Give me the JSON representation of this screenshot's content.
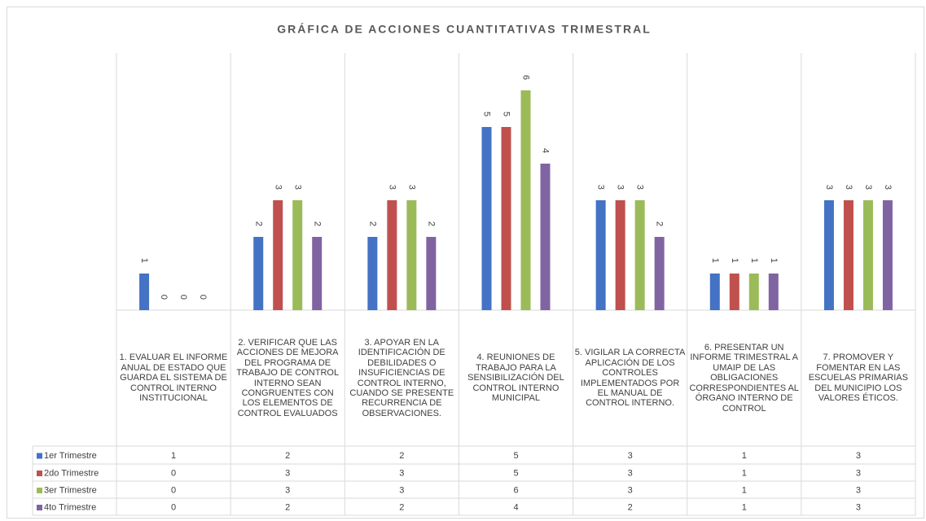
{
  "chart_data": {
    "type": "bar",
    "title": "GRÁFICA DE ACCIONES CUANTITATIVAS TRIMESTRAL",
    "categories": [
      "1. EVALUAR EL INFORME ANUAL DE ESTADO QUE GUARDA EL SISTEMA DE CONTROL INTERNO INSTITUCIONAL",
      "2. VERIFICAR QUE LAS ACCIONES DE MEJORA DEL PROGRAMA DE TRABAJO DE CONTROL INTERNO SEAN CONGRUENTES CON LOS ELEMENTOS DE CONTROL EVALUADOS",
      "3. APOYAR EN LA IDENTIFICACIÓN DE DEBILIDADES O INSUFICIENCIAS DE CONTROL INTERNO, CUANDO SE PRESENTE RECURRENCIA DE OBSERVACIONES.",
      "4. REUNIONES DE TRABAJO PARA LA SENSIBILIZACIÓN DEL CONTROL INTERNO MUNICIPAL",
      "5. VIGILAR LA CORRECTA APLICACIÓN DE LOS CONTROLES IMPLEMENTADOS POR EL MANUAL DE CONTROL INTERNO.",
      "6. PRESENTAR UN INFORME TRIMESTRAL A UMAIP DE LAS OBLIGACIONES CORRESPONDIENTES AL ÓRGANO INTERNO DE CONTROL",
      "7. PROMOVER Y FOMENTAR EN LAS ESCUELAS PRIMARIAS DEL MUNICIPIO LOS VALORES ÉTICOS."
    ],
    "series": [
      {
        "name": "1er Trimestre",
        "color": "#4472c4",
        "values": [
          1,
          2,
          2,
          5,
          3,
          1,
          3
        ]
      },
      {
        "name": "2do Trimestre",
        "color": "#c0504d",
        "values": [
          0,
          3,
          3,
          5,
          3,
          1,
          3
        ]
      },
      {
        "name": "3er Trimestre",
        "color": "#9bbb59",
        "values": [
          0,
          3,
          3,
          6,
          3,
          1,
          3
        ]
      },
      {
        "name": "4to Trimestre",
        "color": "#8064a2",
        "values": [
          0,
          2,
          2,
          4,
          2,
          1,
          3
        ]
      }
    ],
    "ylim": [
      0,
      7
    ]
  }
}
